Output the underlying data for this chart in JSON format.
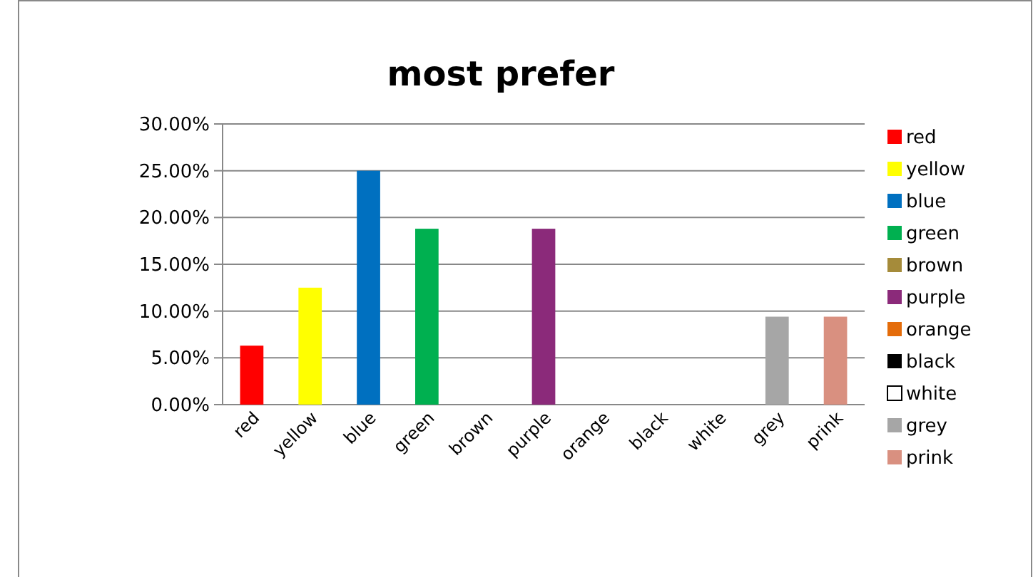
{
  "chart_data": {
    "type": "bar",
    "title": "most prefer",
    "categories": [
      "red",
      "yellow",
      "blue",
      "green",
      "brown",
      "purple",
      "orange",
      "black",
      "white",
      "grey",
      "prink"
    ],
    "series": [
      {
        "name": "red",
        "color": "#ff0000",
        "values": [
          6.3,
          null,
          null,
          null,
          null,
          null,
          null,
          null,
          null,
          null,
          null
        ]
      },
      {
        "name": "yellow",
        "color": "#ffff00",
        "values": [
          null,
          12.5,
          null,
          null,
          null,
          null,
          null,
          null,
          null,
          null,
          null
        ]
      },
      {
        "name": "blue",
        "color": "#0070c0",
        "values": [
          null,
          null,
          25,
          null,
          null,
          null,
          null,
          null,
          null,
          null,
          null
        ]
      },
      {
        "name": "green",
        "color": "#00b050",
        "values": [
          null,
          null,
          null,
          18.8,
          null,
          null,
          null,
          null,
          null,
          null,
          null
        ]
      },
      {
        "name": "brown",
        "color": "#a58b3a",
        "values": [
          null,
          null,
          null,
          null,
          0,
          null,
          null,
          null,
          null,
          null,
          null
        ]
      },
      {
        "name": "purple",
        "color": "#8b2a7a",
        "values": [
          null,
          null,
          null,
          null,
          null,
          18.8,
          null,
          null,
          null,
          null,
          null
        ]
      },
      {
        "name": "orange",
        "color": "#e46c0a",
        "values": [
          null,
          null,
          null,
          null,
          null,
          null,
          0,
          null,
          null,
          null,
          null
        ]
      },
      {
        "name": "black",
        "color": "#000000",
        "values": [
          null,
          null,
          null,
          null,
          null,
          null,
          null,
          0,
          null,
          null,
          null
        ]
      },
      {
        "name": "white",
        "color": "#ffffff",
        "values": [
          null,
          null,
          null,
          null,
          null,
          null,
          null,
          null,
          0,
          null,
          null
        ]
      },
      {
        "name": "grey",
        "color": "#a6a6a6",
        "values": [
          null,
          null,
          null,
          null,
          null,
          null,
          null,
          null,
          null,
          9.4,
          null
        ]
      },
      {
        "name": "prink",
        "color": "#d99080",
        "values": [
          null,
          null,
          null,
          null,
          null,
          null,
          null,
          null,
          null,
          null,
          9.4
        ]
      }
    ],
    "ylim": [
      0,
      30
    ],
    "yticks": [
      {
        "value": 0,
        "label": "0.00%"
      },
      {
        "value": 5,
        "label": "5.00%"
      },
      {
        "value": 10,
        "label": "10.00%"
      },
      {
        "value": 15,
        "label": "15.00%"
      },
      {
        "value": 20,
        "label": "20.00%"
      },
      {
        "value": 25,
        "label": "25.00%"
      },
      {
        "value": 30,
        "label": "30.00%"
      }
    ],
    "grid": "y",
    "legend": "right"
  }
}
